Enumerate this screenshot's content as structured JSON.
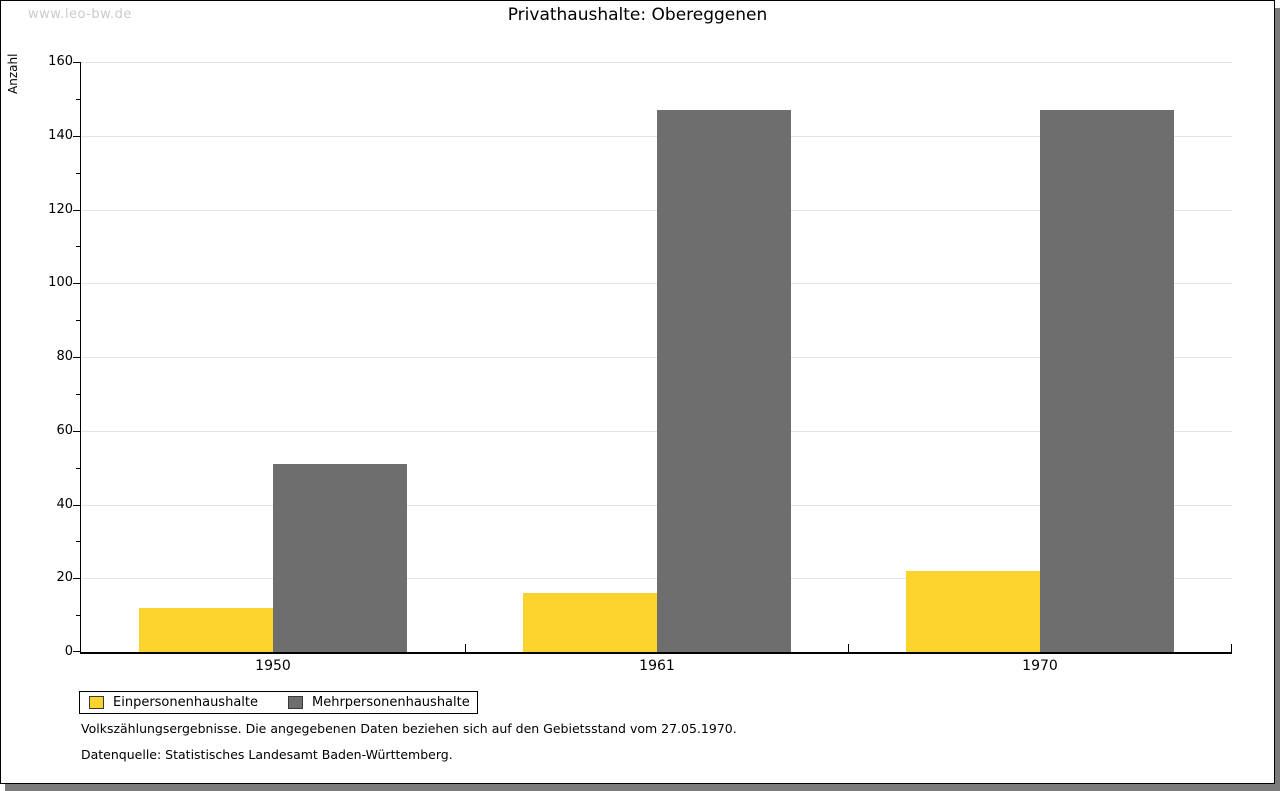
{
  "page": {
    "watermark": "www.leo-bw.de"
  },
  "chart_data": {
    "type": "bar",
    "title": "Privathaushalte: Obereggenen",
    "xlabel": "",
    "ylabel": "Anzahl",
    "categories": [
      "1950",
      "1961",
      "1970"
    ],
    "series": [
      {
        "name": "Einpersonenhaushalte",
        "color": "#fcd22d",
        "values": [
          12,
          16,
          22
        ]
      },
      {
        "name": "Mehrpersonenhaushalte",
        "color": "#6e6e6e",
        "values": [
          51,
          147,
          147
        ]
      }
    ],
    "ylim": [
      0,
      160
    ],
    "y_major_step": 20,
    "y_minor_step": 10,
    "grid": true,
    "legend_position": "bottom-left"
  },
  "footnotes": {
    "line1": "Volkszählungsergebnisse. Die angegebenen Daten beziehen sich auf den Gebietsstand vom 27.05.1970.",
    "line2": "Datenquelle: Statistisches Landesamt Baden-Württemberg."
  }
}
